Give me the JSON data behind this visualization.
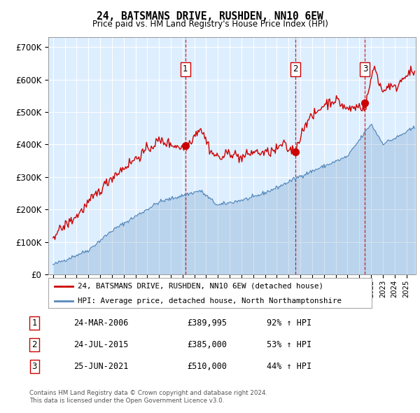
{
  "title": "24, BATSMANS DRIVE, RUSHDEN, NN10 6EW",
  "subtitle": "Price paid vs. HM Land Registry's House Price Index (HPI)",
  "legend_line1": "24, BATSMANS DRIVE, RUSHDEN, NN10 6EW (detached house)",
  "legend_line2": "HPI: Average price, detached house, North Northamptonshire",
  "footer1": "Contains HM Land Registry data © Crown copyright and database right 2024.",
  "footer2": "This data is licensed under the Open Government Licence v3.0.",
  "transactions": [
    {
      "label": "1",
      "date": "24-MAR-2006",
      "price": "£389,995",
      "pct": "92% ↑ HPI",
      "x": 2006.23
    },
    {
      "label": "2",
      "date": "24-JUL-2015",
      "price": "£385,000",
      "pct": "53% ↑ HPI",
      "x": 2015.58
    },
    {
      "label": "3",
      "date": "25-JUN-2021",
      "price": "£510,000",
      "pct": "44% ↑ HPI",
      "x": 2021.49
    }
  ],
  "red_color": "#cc0000",
  "blue_color": "#5588bb",
  "background_color": "#ddeeff",
  "vline_color": "#cc0000",
  "ylim": [
    0,
    730000
  ],
  "xlim": [
    1994.6,
    2025.8
  ],
  "yticks": [
    0,
    100000,
    200000,
    300000,
    400000,
    500000,
    600000,
    700000
  ],
  "ytick_labels": [
    "£0",
    "£100K",
    "£200K",
    "£300K",
    "£400K",
    "£500K",
    "£600K",
    "£700K"
  ]
}
